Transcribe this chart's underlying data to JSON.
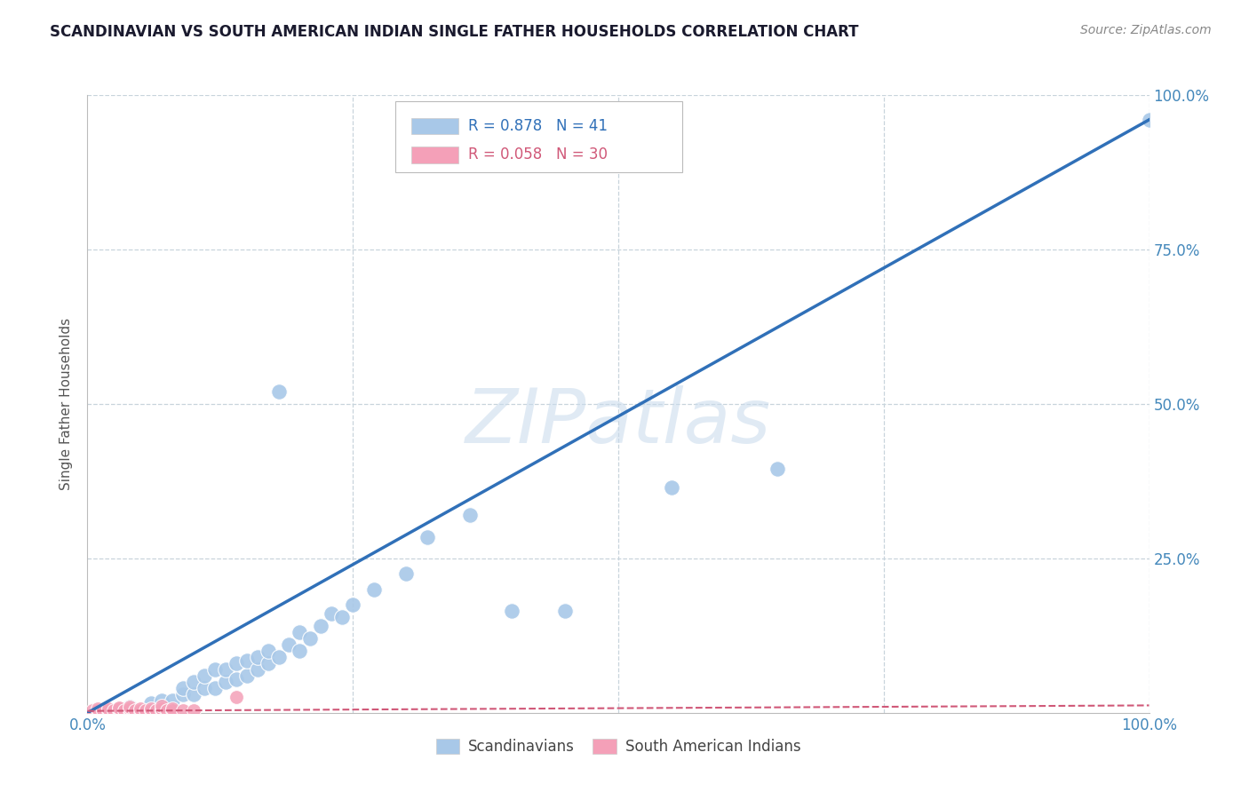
{
  "title": "SCANDINAVIAN VS SOUTH AMERICAN INDIAN SINGLE FATHER HOUSEHOLDS CORRELATION CHART",
  "source": "Source: ZipAtlas.com",
  "ylabel": "Single Father Households",
  "xlim": [
    0,
    1.0
  ],
  "ylim": [
    0,
    1.0
  ],
  "watermark": "ZIPatlas",
  "legend_blue_R": "R = 0.878",
  "legend_blue_N": "N = 41",
  "legend_pink_R": "R = 0.058",
  "legend_pink_N": "N = 30",
  "blue_scatter_x": [
    0.04,
    0.06,
    0.07,
    0.08,
    0.09,
    0.09,
    0.1,
    0.1,
    0.11,
    0.11,
    0.12,
    0.12,
    0.13,
    0.13,
    0.14,
    0.14,
    0.15,
    0.15,
    0.16,
    0.16,
    0.17,
    0.17,
    0.18,
    0.18,
    0.19,
    0.2,
    0.2,
    0.21,
    0.22,
    0.23,
    0.24,
    0.25,
    0.27,
    0.3,
    0.32,
    0.36,
    0.4,
    0.45,
    0.55,
    0.65,
    1.0
  ],
  "blue_scatter_y": [
    0.01,
    0.015,
    0.02,
    0.02,
    0.03,
    0.04,
    0.03,
    0.05,
    0.04,
    0.06,
    0.04,
    0.07,
    0.05,
    0.07,
    0.055,
    0.08,
    0.06,
    0.085,
    0.07,
    0.09,
    0.08,
    0.1,
    0.09,
    0.52,
    0.11,
    0.1,
    0.13,
    0.12,
    0.14,
    0.16,
    0.155,
    0.175,
    0.2,
    0.225,
    0.285,
    0.32,
    0.165,
    0.165,
    0.365,
    0.395,
    0.96
  ],
  "pink_scatter_x": [
    0.005,
    0.01,
    0.01,
    0.015,
    0.02,
    0.02,
    0.025,
    0.03,
    0.03,
    0.03,
    0.035,
    0.04,
    0.04,
    0.04,
    0.045,
    0.05,
    0.05,
    0.055,
    0.06,
    0.06,
    0.065,
    0.07,
    0.07,
    0.07,
    0.075,
    0.08,
    0.08,
    0.09,
    0.1,
    0.14
  ],
  "pink_scatter_y": [
    0.004,
    0.004,
    0.007,
    0.004,
    0.004,
    0.007,
    0.004,
    0.004,
    0.007,
    0.009,
    0.004,
    0.004,
    0.007,
    0.01,
    0.004,
    0.004,
    0.007,
    0.004,
    0.004,
    0.007,
    0.004,
    0.004,
    0.007,
    0.011,
    0.004,
    0.004,
    0.007,
    0.004,
    0.004,
    0.025
  ],
  "blue_line_x": [
    0.0,
    1.0
  ],
  "blue_line_y": [
    0.0,
    0.96
  ],
  "pink_line_x": [
    0.0,
    1.0
  ],
  "pink_line_y": [
    0.003,
    0.012
  ],
  "blue_color": "#A8C8E8",
  "pink_color": "#F4A0B8",
  "blue_line_color": "#3070B8",
  "pink_line_color": "#D05878",
  "grid_color": "#C8D4DC",
  "title_color": "#1a1a2e",
  "tick_label_color": "#4488BB",
  "background_color": "#ffffff",
  "legend_border_color": "#BBBBBB",
  "legend_text_color_blue": "#3070B8",
  "legend_text_color_pink": "#D05878",
  "bottom_legend_labels": [
    "Scandinavians",
    "South American Indians"
  ]
}
